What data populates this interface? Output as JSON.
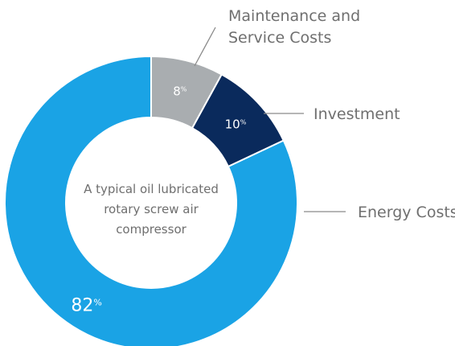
{
  "chart_data": {
    "type": "pie",
    "donut": true,
    "categories": [
      "Energy Costs",
      "Investment",
      "Maintenance and Service Costs"
    ],
    "values": [
      82,
      10,
      8
    ],
    "value_labels": [
      "82",
      "10",
      "8"
    ],
    "value_suffix": "%",
    "category_lines": [
      [
        "Energy Costs"
      ],
      [
        "Investment"
      ],
      [
        "Maintenance and",
        "Service Costs"
      ]
    ],
    "center_text": [
      "A typical oil lubricated",
      "rotary screw air",
      "compressor"
    ],
    "colors": [
      "#1aa3e5",
      "#0a2a5c",
      "#a9adb0"
    ],
    "title": "",
    "legend": "none"
  }
}
